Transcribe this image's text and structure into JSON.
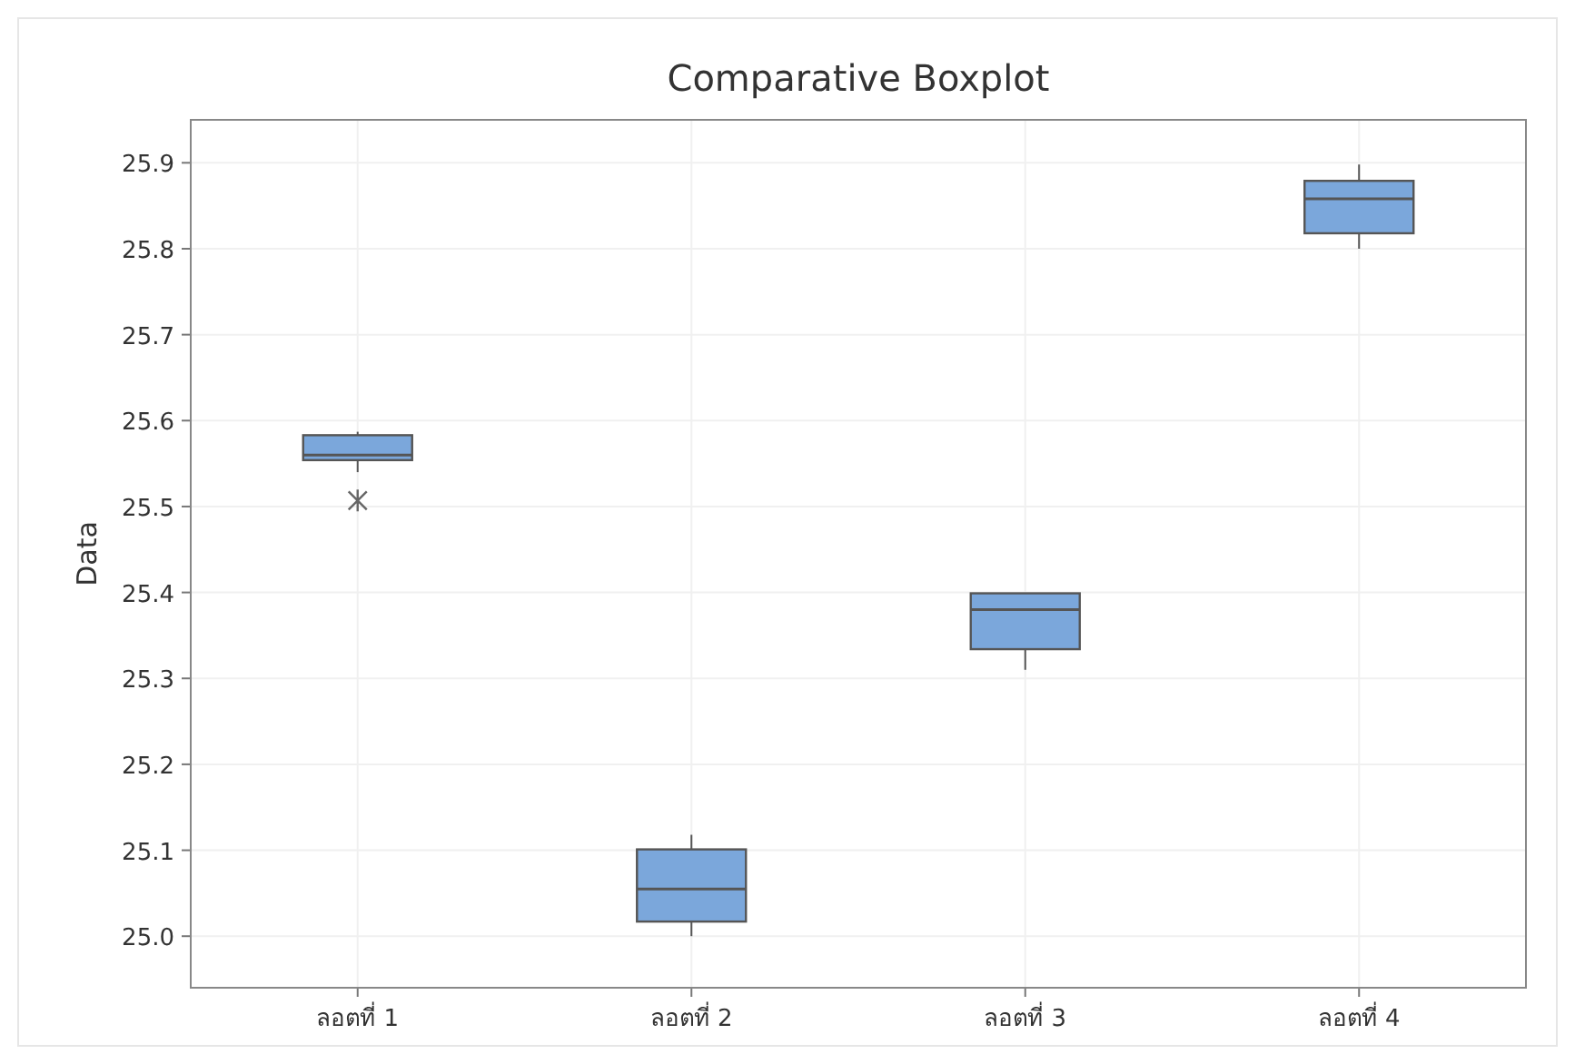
{
  "chart_data": {
    "type": "box",
    "title": "Comparative Boxplot",
    "ylabel": "Data",
    "categories": [
      "ลอตที่ 1",
      "ลอตที่ 2",
      "ลอตที่ 3",
      "ลอตที่ 4"
    ],
    "color": "#7ba7db",
    "boxes": [
      {
        "low": 25.54,
        "q1": 25.554,
        "median": 25.56,
        "q3": 25.583,
        "high": 25.587,
        "outliers": [
          25.507
        ]
      },
      {
        "low": 25.0,
        "q1": 25.017,
        "median": 25.055,
        "q3": 25.101,
        "high": 25.118
      },
      {
        "low": 25.31,
        "q1": 25.334,
        "median": 25.38,
        "q3": 25.399,
        "high": 25.399
      },
      {
        "low": 25.8,
        "q1": 25.818,
        "median": 25.858,
        "q3": 25.879,
        "high": 25.898
      }
    ],
    "ylim": [
      24.94,
      25.95
    ],
    "yticks": [
      {
        "value": 25.0,
        "label": "25.0"
      },
      25.1,
      25.2,
      25.3,
      25.4,
      25.5,
      25.6,
      25.7,
      25.8,
      25.9
    ],
    "grid": true
  }
}
